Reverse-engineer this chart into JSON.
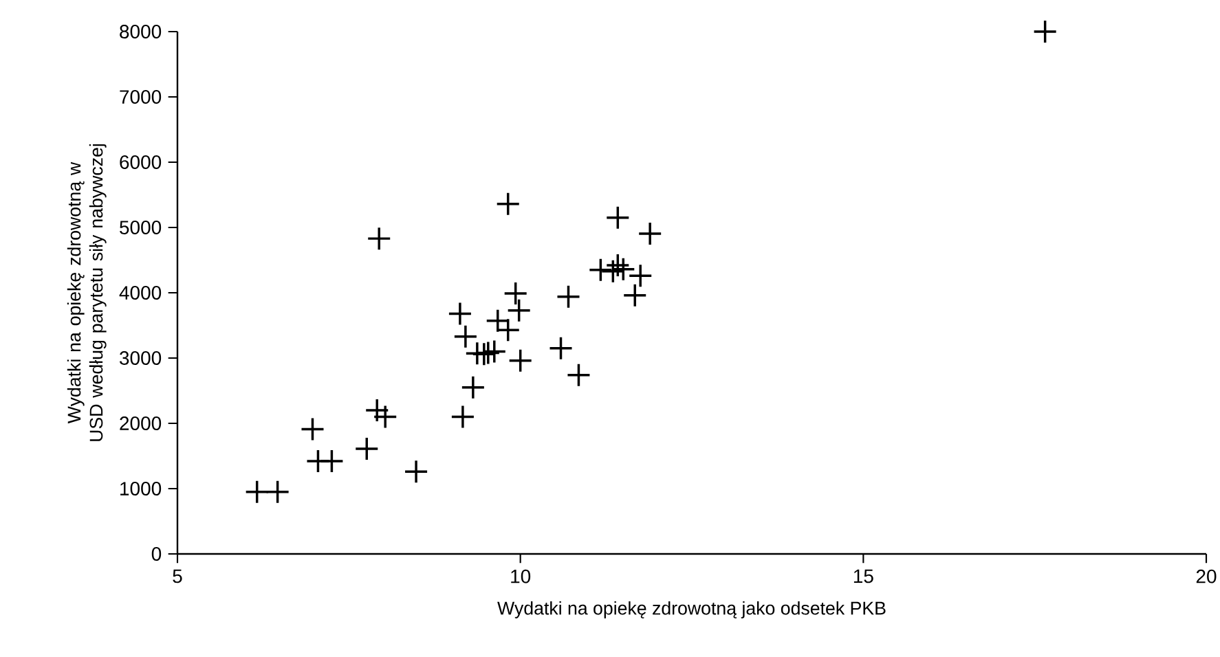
{
  "chart_data": {
    "type": "scatter",
    "xlabel": "Wydatki na opiekę zdrowotną jako odsetek PKB",
    "ylabel": "Wydatki na opiekę zdrowotną w USD według parytetu siły nabywczej",
    "marker": "cross",
    "xlim": [
      5,
      20
    ],
    "xticks": [
      5,
      10,
      15,
      20
    ],
    "ylim": [
      0,
      8000
    ],
    "yticks": [
      0,
      1000,
      2000,
      3000,
      4000,
      5000,
      6000,
      7000,
      8000
    ],
    "series": [
      {
        "color": "#000000",
        "x": [
          6.16,
          6.46,
          6.97,
          7.05,
          7.25,
          7.76,
          7.91,
          8.03,
          7.94,
          8.48,
          9.12,
          9.2,
          9.16,
          9.31,
          9.37,
          9.47,
          9.53,
          9.62,
          9.67,
          9.82,
          9.82,
          9.93,
          9.98,
          10.0,
          10.59,
          10.7,
          10.85,
          11.17,
          11.35,
          11.42,
          11.5,
          11.42,
          11.75,
          11.67,
          11.89,
          17.65
        ],
        "values": [
          950,
          950,
          1910,
          1420,
          1420,
          1610,
          2200,
          2100,
          4830,
          1260,
          3680,
          3330,
          2100,
          2550,
          3070,
          3060,
          3080,
          3100,
          3570,
          3430,
          5360,
          3990,
          3730,
          2960,
          3150,
          3940,
          2740,
          4350,
          4330,
          4420,
          4360,
          5150,
          4260,
          3960,
          4905,
          8000
        ]
      }
    ]
  }
}
